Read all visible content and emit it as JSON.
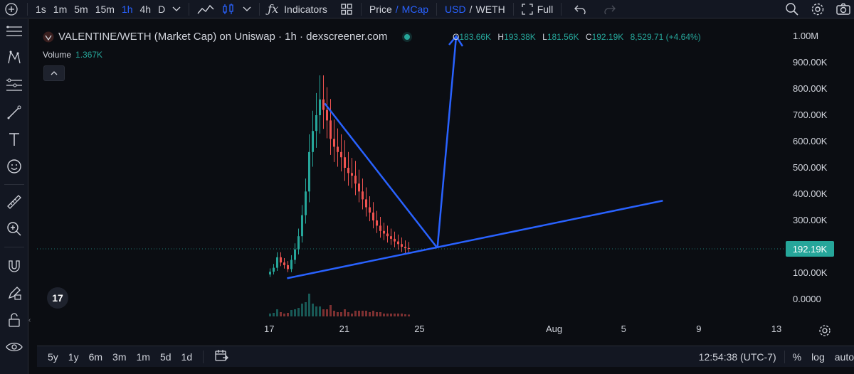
{
  "toolbar": {
    "intervals": [
      "1s",
      "1m",
      "5m",
      "15m",
      "1h",
      "4h",
      "D"
    ],
    "active_interval": "1h",
    "indicators_label": "Indicators",
    "price_label": "Price",
    "slash": "/",
    "mcap_label": "MCap",
    "usd_label": "USD",
    "weth_label": "WETH",
    "full_label": "Full"
  },
  "chart": {
    "title": "VALENTINE/WETH (Market Cap) on Uniswap · 1h · dexscreener.com",
    "ohlc": {
      "o_key": "O",
      "o": "183.66K",
      "h_key": "H",
      "h": "193.38K",
      "l_key": "L",
      "l": "181.56K",
      "c_key": "C",
      "c": "192.19K",
      "change": "8,529.71 (+4.64%)"
    },
    "volume_label": "Volume",
    "volume_value": "1.367K",
    "current_price": "192.19K",
    "logo_text": "17"
  },
  "chart_data": {
    "type": "candlestick",
    "price_ticks": [
      "1.00M",
      "900.00K",
      "800.00K",
      "700.00K",
      "600.00K",
      "500.00K",
      "400.00K",
      "300.00K",
      "200.00K",
      "100.00K",
      "0.0000"
    ],
    "time_ticks": [
      "17",
      "21",
      "25",
      "Aug",
      "5",
      "9",
      "13"
    ],
    "candles_approx_close": [
      105,
      120,
      160,
      140,
      130,
      115,
      150,
      190,
      240,
      320,
      410,
      560,
      640,
      700,
      760,
      720,
      680,
      610,
      580,
      560,
      540,
      500,
      480,
      470,
      440,
      410,
      380,
      350,
      330,
      300,
      280,
      260,
      250,
      240,
      230,
      220,
      210,
      200,
      195,
      192
    ],
    "trendlines": [
      {
        "from": [
          "Jul 18",
          80
        ],
        "to": [
          "Aug 7",
          375
        ]
      },
      {
        "from": [
          "Jul 20",
          745
        ],
        "to": [
          "Jul 26",
          195
        ]
      },
      {
        "from": [
          "Jul 26",
          195
        ],
        "to": [
          "Jul 27",
          1000
        ]
      }
    ]
  },
  "bottombar": {
    "ranges": [
      "5y",
      "1y",
      "6m",
      "3m",
      "1m",
      "5d",
      "1d"
    ],
    "time": "12:54:38 (UTC-7)",
    "percent": "%",
    "log": "log",
    "auto": "auto"
  },
  "colors": {
    "up": "#26a69a",
    "down": "#ef5350",
    "line": "#2962ff",
    "bg": "#0b0d12"
  }
}
